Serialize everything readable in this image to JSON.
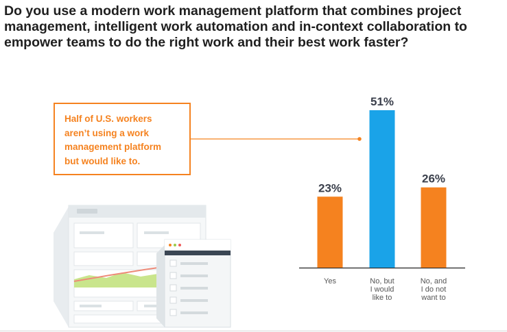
{
  "question": "Do you use a modern work management platform that combines project management, intelligent work automation and in-context collaboration to empower teams to do the right work and their best work faster?",
  "callout": {
    "lines": [
      "Half of U.S. workers",
      "aren’t using a work",
      "management platform",
      "but would like to."
    ]
  },
  "colors": {
    "orange": "#f5821f",
    "blue": "#1aa3e8",
    "label_dark": "#3a3f4b",
    "axis_gray": "#555555"
  },
  "illustration": {
    "name": "work-management-dashboard-illustration"
  },
  "chart_data": {
    "type": "bar",
    "categories": [
      "Yes",
      "No, but I would like to",
      "No, and I do not want to"
    ],
    "category_lines": [
      [
        "Yes"
      ],
      [
        "No, but",
        "I would",
        "like to"
      ],
      [
        "No, and",
        "I do not",
        "want to"
      ]
    ],
    "values": [
      23,
      51,
      26
    ],
    "value_labels": [
      "23%",
      "51%",
      "26%"
    ],
    "unit": "%",
    "highlight_index": 1,
    "title": "",
    "xlabel": "",
    "ylabel": "",
    "ylim": [
      0,
      51
    ],
    "grid": false,
    "legend": "none"
  }
}
